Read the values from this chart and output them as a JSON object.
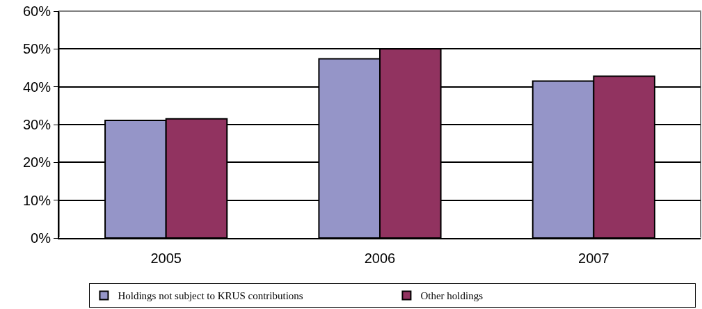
{
  "chart_data": {
    "type": "bar",
    "categories": [
      "2005",
      "2006",
      "2007"
    ],
    "series": [
      {
        "name": "Holdings not subject to KRUS contributions",
        "color": "#9595c8",
        "values": [
          31.1,
          47.4,
          41.5
        ]
      },
      {
        "name": "Other holdings",
        "color": "#913360",
        "values": [
          31.5,
          50.0,
          42.8
        ]
      }
    ],
    "ylim": [
      0,
      60
    ],
    "yticks": [
      {
        "value": 0,
        "label": "0%"
      },
      {
        "value": 10,
        "label": "10%"
      },
      {
        "value": 20,
        "label": "20%"
      },
      {
        "value": 30,
        "label": "30%"
      },
      {
        "value": 40,
        "label": "40%"
      },
      {
        "value": 50,
        "label": "50%"
      },
      {
        "value": 60,
        "label": "60%"
      }
    ],
    "grid": "y",
    "legend": "bottom"
  }
}
